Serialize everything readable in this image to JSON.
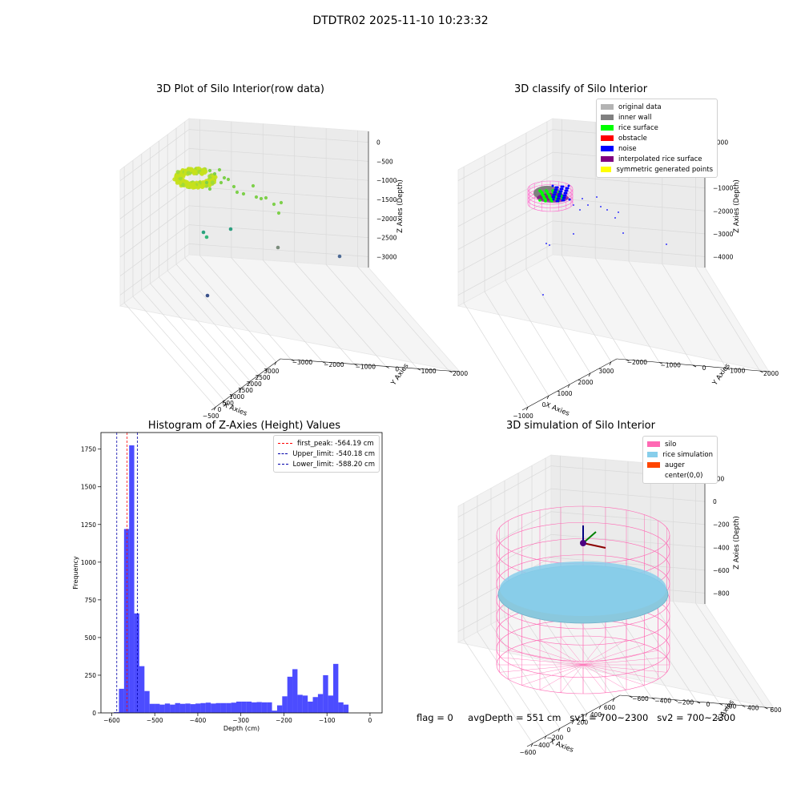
{
  "suptitle": "DTDTR02 2025-11-10 10:23:32",
  "colors": {
    "pane": "#f2f2f2",
    "grid": "#d9d9d9",
    "hist_bar": "#0000ff",
    "first_peak_line": "#ff0000",
    "limit_line": "#0000aa"
  },
  "chart_data": [
    {
      "type": "scatter",
      "projection": "3d",
      "title": "3D Plot of Silo Interior(row data)",
      "xlabel": "X Axies",
      "ylabel": "Y Axies",
      "zlabel": "Z Axies (Depth)",
      "x_ticks": [
        "−500",
        "0",
        "500",
        "1000",
        "1500",
        "2000",
        "2500",
        "3000"
      ],
      "y_ticks": [
        "2000",
        "1000",
        "0",
        "−1000",
        "−2000",
        "−3000"
      ],
      "z_ticks": [
        "0",
        "−500",
        "−1000",
        "−1500",
        "−2000",
        "−2500",
        "−3000"
      ],
      "colormap": "viridis (by depth)",
      "clusters": [
        {
          "description": "ring-shaped dense cluster",
          "x_range": [
            -450,
            450
          ],
          "y_range": [
            -450,
            450
          ],
          "z_range": [
            -800,
            -300
          ],
          "color": "#b8e01f"
        },
        {
          "description": "trailing points",
          "x": [
            500,
            900,
            1200,
            1500,
            1800,
            2100,
            2300
          ],
          "z": [
            -700,
            -900,
            -1100,
            -1200,
            -1300,
            -1400,
            -1550
          ],
          "color": "#7ed04b"
        }
      ],
      "outliers": [
        {
          "x": 100,
          "y": 300,
          "z": -2500,
          "color": "#2aa27d"
        },
        {
          "x": 800,
          "y": 200,
          "z": -2600,
          "color": "#35b779"
        },
        {
          "x": 2300,
          "y": -200,
          "z": -2900,
          "color": "#5a8a8a"
        },
        {
          "x": 3100,
          "y": -600,
          "z": -3000,
          "color": "#46588f"
        },
        {
          "x": 500,
          "y": 1800,
          "z": -3200,
          "color": "#3b528b"
        }
      ]
    },
    {
      "type": "scatter",
      "projection": "3d",
      "title": "3D classify of Silo Interior",
      "xlabel": "X Axies",
      "ylabel": "Y Axies",
      "zlabel": "Z Axies (Depth)",
      "x_ticks": [
        "−1000",
        "0",
        "1000",
        "2000",
        "3000"
      ],
      "y_ticks": [
        "2000",
        "1000",
        "0",
        "−1000",
        "−2000"
      ],
      "z_ticks": [
        "1000",
        "0",
        "−1000",
        "−2000",
        "−3000",
        "−4000"
      ],
      "legend": {
        "position": "upper right",
        "entries": [
          {
            "label": "original data",
            "color": "#b3b3b3"
          },
          {
            "label": "inner wall",
            "color": "#808080"
          },
          {
            "label": "rice surface",
            "color": "#00ff00"
          },
          {
            "label": "obstacle",
            "color": "#ff0000"
          },
          {
            "label": "noise",
            "color": "#0000ff"
          },
          {
            "label": "interpolated rice surface",
            "color": "#800080"
          },
          {
            "label": "symmetric generated points",
            "color": "#ffff00"
          }
        ]
      }
    },
    {
      "type": "bar",
      "subtype": "histogram",
      "title": "Histogram of Z-Axies (Height) Values",
      "xlabel": "Depth (cm)",
      "ylabel": "Frequency",
      "xlim": [
        -625,
        28
      ],
      "ylim": [
        0,
        1860
      ],
      "x_ticks": [
        "−600",
        "−500",
        "−400",
        "−300",
        "−200",
        "−100",
        "0"
      ],
      "x_tick_values": [
        -600,
        -500,
        -400,
        -300,
        -200,
        -100,
        0
      ],
      "y_ticks": [
        "0",
        "250",
        "500",
        "750",
        "1000",
        "1250",
        "1500",
        "1750"
      ],
      "y_tick_values": [
        0,
        250,
        500,
        750,
        1000,
        1250,
        1500,
        1750
      ],
      "bin_edges_start": -595,
      "bin_width": 11.85,
      "values": [
        5,
        160,
        1220,
        1775,
        660,
        310,
        145,
        60,
        60,
        55,
        62,
        55,
        65,
        60,
        62,
        58,
        62,
        65,
        68,
        62,
        65,
        65,
        65,
        68,
        75,
        75,
        75,
        70,
        72,
        70,
        70,
        15,
        50,
        110,
        240,
        290,
        120,
        115,
        75,
        105,
        125,
        250,
        115,
        325,
        70,
        55
      ],
      "reference_lines": [
        {
          "label": "first_peak: -564.19 cm",
          "value": -564.19,
          "color": "#ff0000"
        },
        {
          "label": "Upper_limit: -540.18 cm",
          "value": -540.18,
          "color": "#0000aa"
        },
        {
          "label": "Lower_limit: -588.20 cm",
          "value": -588.2,
          "color": "#0000aa"
        }
      ],
      "legend": {
        "position": "upper right"
      }
    },
    {
      "type": "scatter",
      "projection": "3d",
      "title": "3D simulation of Silo Interior",
      "xlabel": "X Axies",
      "ylabel": "Y Axies",
      "zlabel": "Z Axies (Depth)",
      "x_ticks": [
        "−600",
        "−400",
        "−200",
        "0",
        "200",
        "400",
        "600"
      ],
      "y_ticks": [
        "600",
        "400",
        "200",
        "0",
        "−200",
        "−400",
        "−600"
      ],
      "z_ticks": [
        "200",
        "0",
        "−200",
        "−400",
        "−600",
        "−800"
      ],
      "legend": {
        "position": "upper right",
        "entries": [
          {
            "label": "silo",
            "color": "#ff69b4"
          },
          {
            "label": "rice simulation",
            "color": "#87ceeb"
          },
          {
            "label": "auger",
            "color": "#ff4500"
          },
          {
            "label": "center(0,0)",
            "color": ""
          }
        ]
      },
      "silo": {
        "radius": 650,
        "top_z": 0,
        "bottom_z": -1000
      },
      "rice_surface_depth": -551
    }
  ],
  "footer": {
    "flag": "flag = 0",
    "avg_depth": "avgDepth = 551 cm",
    "sv1": "sv1 = 700~2300",
    "sv2": "sv2 = 700~2300"
  }
}
